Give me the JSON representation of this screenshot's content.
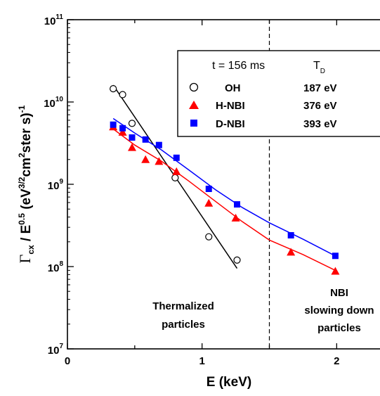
{
  "chart_data": {
    "type": "scatter",
    "title": "",
    "xlabel": "E (keV)",
    "ylabel": {
      "gamma": "Γ",
      "gamma_sub": "cx",
      "rest_1": " / E",
      "exp_05": "0.5",
      "rest_2": " (eV",
      "exp_32": "3/2",
      "rest_3": "cm",
      "exp_2": "2",
      "rest_4": "ster s)",
      "exp_m1": "-1"
    },
    "x_scale": "linear",
    "y_scale": "log",
    "xlim": [
      0,
      2.4
    ],
    "ylim": [
      10000000,
      100000000000
    ],
    "x_ticks": [
      {
        "value": 0,
        "label": "0"
      },
      {
        "value": 1,
        "label": "1"
      },
      {
        "value": 2,
        "label": "2"
      }
    ],
    "y_ticks": [
      {
        "value": 10000000,
        "base": "10",
        "exp": "7"
      },
      {
        "value": 100000000,
        "base": "10",
        "exp": "8"
      },
      {
        "value": 1000000000,
        "base": "10",
        "exp": "9"
      },
      {
        "value": 10000000000,
        "base": "10",
        "exp": "10"
      },
      {
        "value": 100000000000,
        "base": "10",
        "exp": "11"
      }
    ],
    "grid": false,
    "vline": {
      "x": 1.5,
      "style": "dashed"
    },
    "legend": {
      "placement": "top-right",
      "header": "t = 156 ms",
      "column_header": "T",
      "column_header_sub": "D"
    },
    "series": [
      {
        "name": "OH",
        "value_label": "187 eV",
        "marker": "open-circle",
        "color": "#000000",
        "points": [
          [
            0.34,
            14500000000
          ],
          [
            0.41,
            12300000000
          ],
          [
            0.48,
            5500000000
          ],
          [
            0.8,
            1200000000
          ],
          [
            1.05,
            230000000
          ],
          [
            1.26,
            120000000
          ]
        ],
        "fit": [
          [
            0.34,
            16000000000
          ],
          [
            1.26,
            95000000
          ]
        ]
      },
      {
        "name": "H-NBI",
        "value_label": "376 eV",
        "marker": "filled-triangle",
        "color": "#ff0000",
        "points": [
          [
            0.34,
            5000000000
          ],
          [
            0.41,
            4300000000
          ],
          [
            0.48,
            2800000000
          ],
          [
            0.58,
            2000000000
          ],
          [
            0.68,
            1900000000
          ],
          [
            0.81,
            1430000000
          ],
          [
            1.05,
            590000000
          ],
          [
            1.25,
            390000000
          ],
          [
            1.66,
            150000000
          ],
          [
            1.99,
            88000000
          ]
        ],
        "fit": [
          [
            0.34,
            4700000000
          ],
          [
            0.5,
            3000000000
          ],
          [
            0.7,
            1900000000
          ],
          [
            0.9,
            1100000000
          ],
          [
            1.1,
            620000000
          ],
          [
            1.3,
            350000000
          ],
          [
            1.5,
            210000000
          ],
          [
            1.75,
            140000000
          ],
          [
            1.99,
            90000000
          ]
        ]
      },
      {
        "name": "D-NBI",
        "value_label": "393 eV",
        "marker": "filled-square",
        "color": "#0000ff",
        "points": [
          [
            0.34,
            5300000000
          ],
          [
            0.41,
            4800000000
          ],
          [
            0.48,
            3700000000
          ],
          [
            0.58,
            3500000000
          ],
          [
            0.68,
            3000000000
          ],
          [
            0.81,
            2100000000
          ],
          [
            1.05,
            880000000
          ],
          [
            1.26,
            570000000
          ],
          [
            1.66,
            240000000
          ],
          [
            1.99,
            135000000
          ]
        ],
        "fit": [
          [
            0.34,
            6300000000
          ],
          [
            0.5,
            4200000000
          ],
          [
            0.7,
            2600000000
          ],
          [
            0.9,
            1500000000
          ],
          [
            1.1,
            860000000
          ],
          [
            1.3,
            520000000
          ],
          [
            1.5,
            340000000
          ],
          [
            1.75,
            215000000
          ],
          [
            1.99,
            135000000
          ]
        ]
      }
    ],
    "annotations": [
      {
        "id": "thermalized",
        "lines": [
          "Thermalized",
          "particles"
        ]
      },
      {
        "id": "nbi",
        "lines": [
          "NBI",
          "slowing down",
          "particles"
        ]
      }
    ]
  }
}
